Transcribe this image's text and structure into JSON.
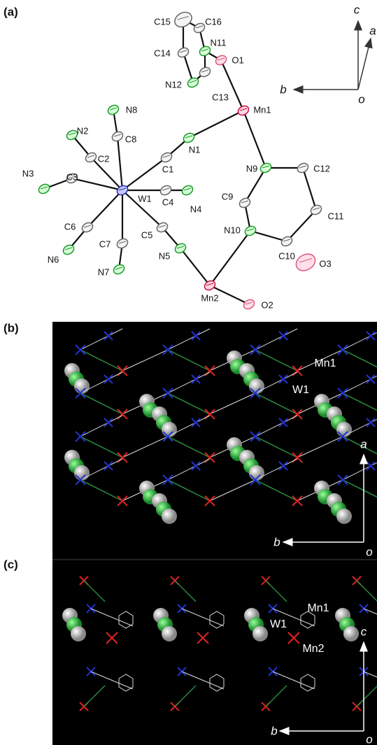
{
  "panels": [
    {
      "label": "(a)",
      "atoms": [
        "C15",
        "C16",
        "N11",
        "O1",
        "C14",
        "N12",
        "C13",
        "N8",
        "Mn1",
        "N2",
        "C8",
        "N1",
        "C2",
        "C1",
        "N9",
        "C12",
        "N3",
        "C3",
        "W1",
        "C4",
        "N4",
        "C9",
        "C6",
        "C7",
        "C5",
        "N10",
        "C11",
        "N6",
        "N5",
        "O3",
        "C10",
        "N7",
        "Mn2",
        "O2"
      ],
      "axes": [
        "c",
        "a",
        "b",
        "o"
      ]
    },
    {
      "label": "(b)",
      "atoms": [
        "Mn1",
        "W1"
      ],
      "axes": [
        "a",
        "b",
        "o"
      ]
    },
    {
      "label": "(c)",
      "atoms": [
        "Mn1",
        "W1",
        "Mn2"
      ],
      "axes": [
        "c",
        "b",
        "o"
      ]
    }
  ]
}
